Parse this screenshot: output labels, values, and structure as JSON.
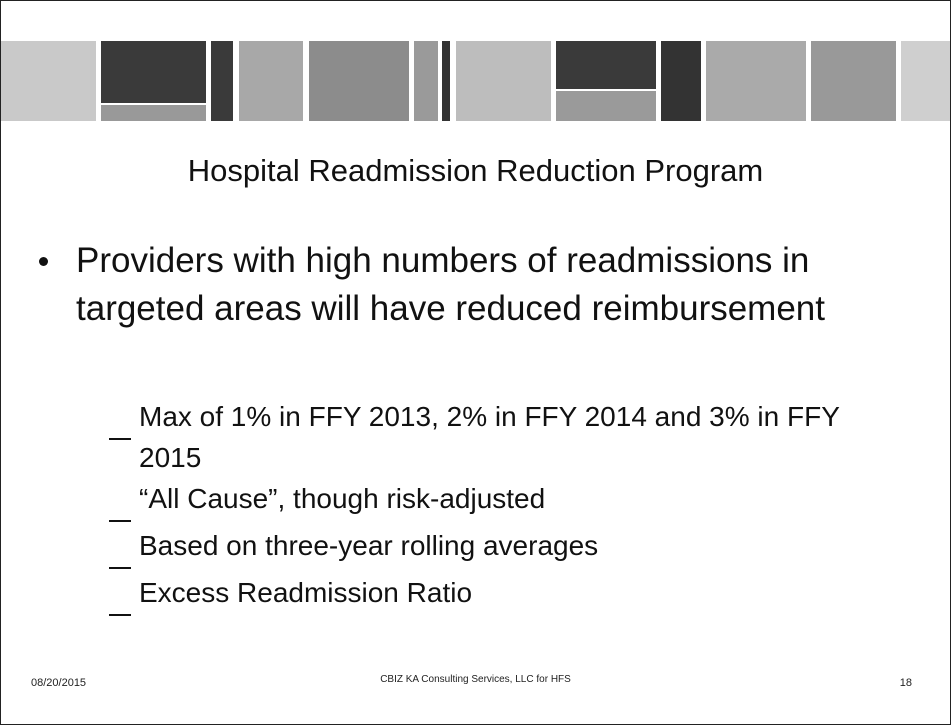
{
  "title": "Hospital Readmission Reduction Program",
  "bullets": [
    {
      "text": "Providers with high numbers of readmissions in targeted areas will have reduced reimbursement",
      "items": [
        "Max of 1% in FFY 2013, 2% in FFY 2014 and 3% in FFY 2015",
        "“All Cause”, though risk-adjusted",
        "Based on three-year rolling averages",
        "Excess Readmission Ratio"
      ]
    }
  ],
  "footer": {
    "date": "08/20/2015",
    "text": "CBIZ KA Consulting Services, LLC for HFS",
    "page": 18
  }
}
